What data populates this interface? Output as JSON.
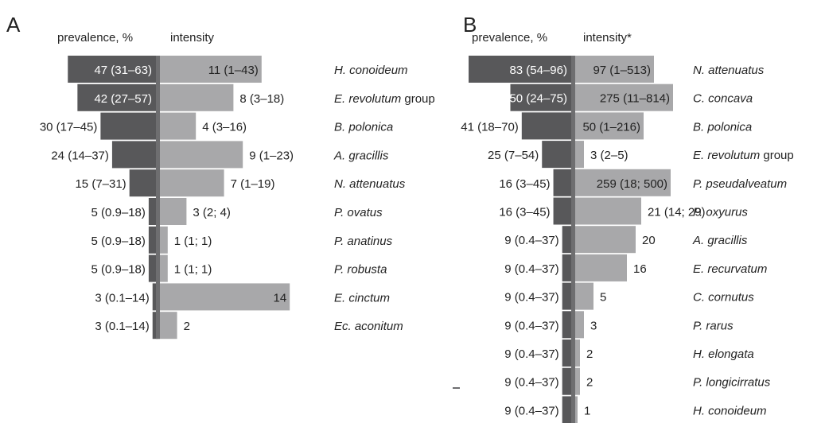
{
  "colors": {
    "prevalence": "#58585a",
    "intensity": "#a8a8aa",
    "divider": "#6e6e70",
    "text": "#222222",
    "label_on_bar": "#ffffff"
  },
  "chart_data": [
    {
      "type": "bar",
      "panel_label": "A",
      "prevalence_header": "prevalence, %",
      "intensity_header": "intensity",
      "species": [
        {
          "name": "H. conoideum",
          "suffix": "",
          "prevalence": 47,
          "prevalence_label": "47 (31–63)",
          "intensity": 11,
          "intensity_label": "11 (1–43)"
        },
        {
          "name": "E. revolutum",
          "suffix": " group",
          "prevalence": 42,
          "prevalence_label": "42 (27–57)",
          "intensity": 8,
          "intensity_label": "8 (3–18)"
        },
        {
          "name": "B. polonica",
          "suffix": "",
          "prevalence": 30,
          "prevalence_label": "30 (17–45)",
          "intensity": 4,
          "intensity_label": "4 (3–16)"
        },
        {
          "name": "A. gracillis",
          "suffix": "",
          "prevalence": 24,
          "prevalence_label": "24 (14–37)",
          "intensity": 9,
          "intensity_label": "9 (1–23)"
        },
        {
          "name": "N. attenuatus",
          "suffix": "",
          "prevalence": 15,
          "prevalence_label": "15 (7–31)",
          "intensity": 7,
          "intensity_label": "7 (1–19)"
        },
        {
          "name": "P. ovatus",
          "suffix": "",
          "prevalence": 5,
          "prevalence_label": "5 (0.9–18)",
          "intensity": 3,
          "intensity_label": "3 (2; 4)"
        },
        {
          "name": "P. anatinus",
          "suffix": "",
          "prevalence": 5,
          "prevalence_label": "5 (0.9–18)",
          "intensity": 1,
          "intensity_label": "1 (1; 1)"
        },
        {
          "name": "P. robusta",
          "suffix": "",
          "prevalence": 5,
          "prevalence_label": "5 (0.9–18)",
          "intensity": 1,
          "intensity_label": "1 (1; 1)"
        },
        {
          "name": "E. cinctum",
          "suffix": "",
          "prevalence": 3,
          "prevalence_label": "3 (0.1–14)",
          "intensity": 14,
          "intensity_label": "14"
        },
        {
          "name": "Ec. aconitum",
          "suffix": "",
          "prevalence": 3,
          "prevalence_label": "3 (0.1–14)",
          "intensity": 2,
          "intensity_label": "2"
        }
      ]
    },
    {
      "type": "bar",
      "panel_label": "B",
      "prevalence_header": "prevalence, %",
      "intensity_header": "intensity*",
      "species": [
        {
          "name": "N. attenuatus",
          "suffix": "",
          "prevalence": 83,
          "prevalence_label": "83 (54–96)",
          "intensity": 97,
          "intensity_label": "97 (1–513)"
        },
        {
          "name": "C. concava",
          "suffix": "",
          "prevalence": 50,
          "prevalence_label": "50 (24–75)",
          "intensity": 275,
          "intensity_label": "275 (11–814)"
        },
        {
          "name": "B. polonica",
          "suffix": "",
          "prevalence": 41,
          "prevalence_label": "41 (18–70)",
          "intensity": 50,
          "intensity_label": "50 (1–216)"
        },
        {
          "name": "E. revolutum",
          "suffix": " group",
          "prevalence": 25,
          "prevalence_label": "25 (7–54)",
          "intensity": 3,
          "intensity_label": "3 (2–5)"
        },
        {
          "name": "P. pseudalveatum",
          "suffix": "",
          "prevalence": 16,
          "prevalence_label": "16 (3–45)",
          "intensity": 259,
          "intensity_label": "259 (18; 500)"
        },
        {
          "name": "P. oxyurus",
          "suffix": "",
          "prevalence": 16,
          "prevalence_label": "16 (3–45)",
          "intensity": 21,
          "intensity_label": "21 (14; 29)"
        },
        {
          "name": "A. gracillis",
          "suffix": "",
          "prevalence": 9,
          "prevalence_label": "9 (0.4–37)",
          "intensity": 20,
          "intensity_label": "20"
        },
        {
          "name": "E. recurvatum",
          "suffix": "",
          "prevalence": 9,
          "prevalence_label": "9 (0.4–37)",
          "intensity": 16,
          "intensity_label": "16"
        },
        {
          "name": "C. cornutus",
          "suffix": "",
          "prevalence": 9,
          "prevalence_label": "9 (0.4–37)",
          "intensity": 5,
          "intensity_label": "5"
        },
        {
          "name": "P. rarus",
          "suffix": "",
          "prevalence": 9,
          "prevalence_label": "9 (0.4–37)",
          "intensity": 3,
          "intensity_label": "3"
        },
        {
          "name": "H. elongata",
          "suffix": "",
          "prevalence": 9,
          "prevalence_label": "9 (0.4–37)",
          "intensity": 2,
          "intensity_label": "2"
        },
        {
          "name": "P. longicirratus",
          "suffix": "",
          "prevalence": 9,
          "prevalence_label": "9 (0.4–37)",
          "intensity": 2,
          "intensity_label": "2"
        },
        {
          "name": "H. conoideum",
          "suffix": "",
          "prevalence": 9,
          "prevalence_label": "9 (0.4–37)",
          "intensity": 1,
          "intensity_label": "1"
        }
      ]
    }
  ]
}
